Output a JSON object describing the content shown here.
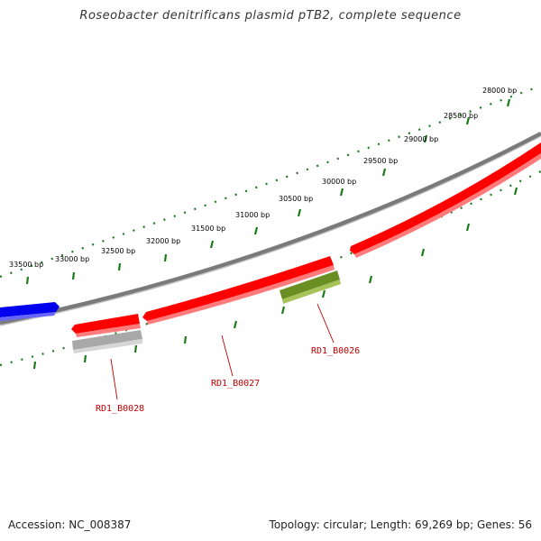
{
  "title": "Roseobacter denitrificans plasmid pTB2, complete sequence",
  "footer": {
    "accession": "Accession: NC_008387",
    "summary": "Topology: circular; Length: 69,269 bp; Genes: 56"
  },
  "colors": {
    "backbone": "#808080",
    "cds_red": "#ff0000",
    "cds_blue": "#0000ee",
    "cds_green": "#6b8e23",
    "cds_gray": "#b0b0b0",
    "ticks": "#1a7a1a",
    "label": "#c00000"
  },
  "ticks": [
    {
      "label": "28000 bp"
    },
    {
      "label": "28500 bp"
    },
    {
      "label": "29000 bp"
    },
    {
      "label": "29500 bp"
    },
    {
      "label": "30000 bp"
    },
    {
      "label": "30500 bp"
    },
    {
      "label": "31000 bp"
    },
    {
      "label": "31500 bp"
    },
    {
      "label": "32000 bp"
    },
    {
      "label": "32500 bp"
    },
    {
      "label": "33000 bp"
    },
    {
      "label": "33500 bp"
    }
  ],
  "features": [
    {
      "name": "RD1_B0026",
      "type": "CDS",
      "color": "#6b8e23"
    },
    {
      "name": "RD1_B0027",
      "type": "CDS",
      "color": "#ff0000"
    },
    {
      "name": "RD1_B0028",
      "type": "CDS",
      "color": "#b0b0b0"
    }
  ]
}
